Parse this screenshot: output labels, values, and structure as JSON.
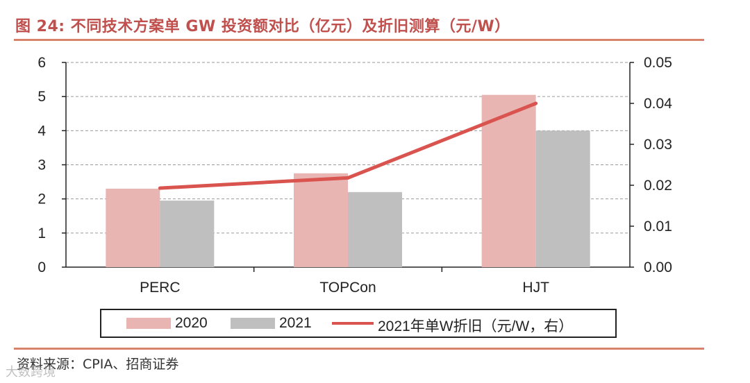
{
  "colors": {
    "title": "#c0504d",
    "rule": "#d9826b",
    "bar2020": "#e8b5b3",
    "bar2021": "#bfbfbf",
    "line": "#d9534f",
    "grid": "#9a9a9a",
    "axis": "#222222"
  },
  "title": "图 24: 不同技术方案单 GW 投资额对比（亿元）及折旧测算（元/W）",
  "source": "资料来源：CPIA、招商证券",
  "watermark": "大数跨境",
  "legend": {
    "series1": "2020",
    "series2": "2021",
    "series3": "2021年单W折旧（元/W，右）"
  },
  "chart_data": {
    "type": "bar",
    "categories": [
      "PERC",
      "TOPCon",
      "HJT"
    ],
    "series": [
      {
        "name": "2020",
        "axis": "left",
        "type": "bar",
        "values": [
          2.3,
          2.75,
          5.05
        ]
      },
      {
        "name": "2021",
        "axis": "left",
        "type": "bar",
        "values": [
          1.95,
          2.2,
          4.0
        ]
      },
      {
        "name": "2021年单W折旧（元/W，右）",
        "axis": "right",
        "type": "line",
        "values": [
          0.0193,
          0.0218,
          0.04
        ]
      }
    ],
    "y_left": {
      "min": 0,
      "max": 6,
      "ticks": [
        "0",
        "1",
        "2",
        "3",
        "4",
        "5",
        "6"
      ]
    },
    "y_right": {
      "min": 0,
      "max": 0.05,
      "ticks": [
        "0.00",
        "0.01",
        "0.02",
        "0.03",
        "0.04",
        "0.05"
      ]
    },
    "grid": true,
    "legend_position": "bottom"
  }
}
